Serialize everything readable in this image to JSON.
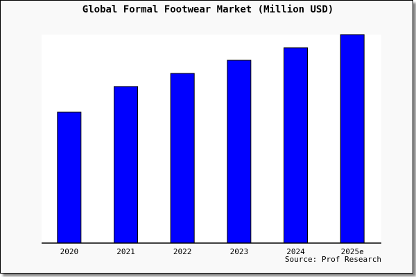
{
  "chart_data": {
    "type": "bar",
    "title": "Global Formal Footwear Market (Million USD)",
    "categories": [
      "2020",
      "2021",
      "2022",
      "2023",
      "2024",
      "2025e"
    ],
    "values": [
      62.8,
      75.1,
      81.4,
      87.7,
      93.7,
      100
    ],
    "xlabel": "",
    "ylabel": "",
    "ylim": [
      0,
      100
    ],
    "grid": false,
    "bar_color": "#0000ff",
    "bar_edge_color": "#000000",
    "source": "Source: Prof Research"
  }
}
